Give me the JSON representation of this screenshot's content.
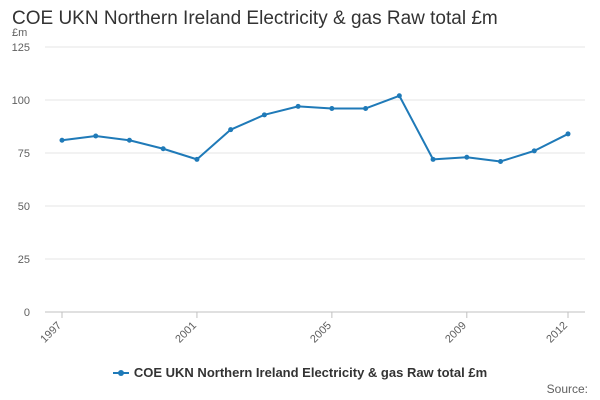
{
  "chart_data": {
    "type": "line",
    "title": "COE UKN Northern Ireland Electricity & gas Raw total £m",
    "ylabel": "£m",
    "xlabel": "",
    "ylim": [
      0,
      125
    ],
    "yticks": [
      0,
      25,
      50,
      75,
      100,
      125
    ],
    "grid": true,
    "legend_position": "bottom-center",
    "x": [
      "1997",
      "1998",
      "1999",
      "2000",
      "2001",
      "2002",
      "2003",
      "2004",
      "2005",
      "2006",
      "2007",
      "2008",
      "2009",
      "2010",
      "2011",
      "2012"
    ],
    "x_tick_labels": [
      "1997",
      "2001",
      "2005",
      "2009",
      "2012"
    ],
    "series": [
      {
        "name": "COE UKN Northern Ireland Electricity & gas Raw total £m",
        "color": "#1f7ab8",
        "values": [
          81,
          83,
          81,
          77,
          72,
          86,
          93,
          97,
          96,
          96,
          102,
          72,
          73,
          71,
          76,
          84
        ]
      }
    ],
    "source": "Source:"
  }
}
